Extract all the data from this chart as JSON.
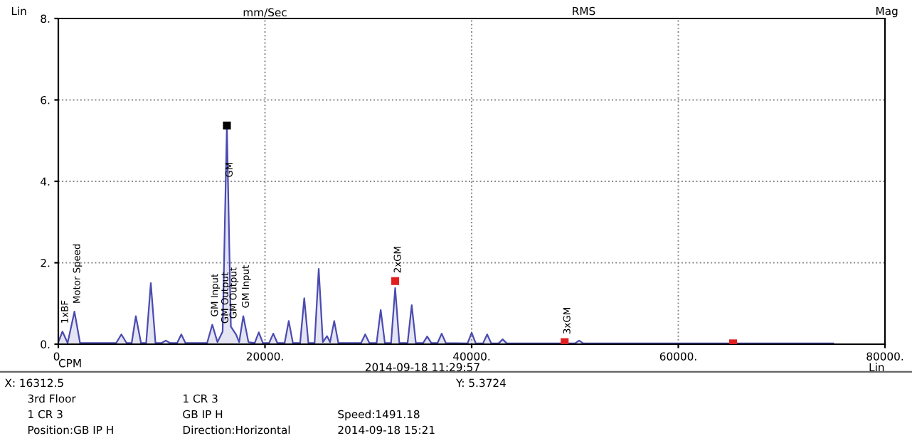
{
  "chart_data": {
    "type": "line",
    "ylabel": "mm/Sec",
    "xlabel": "CPM",
    "xlim": [
      0,
      80000
    ],
    "ylim": [
      0,
      8
    ],
    "xticks": [
      {
        "value": 0,
        "label": "0."
      },
      {
        "value": 20000,
        "label": "20000."
      },
      {
        "value": 40000,
        "label": "40000."
      },
      {
        "value": 60000,
        "label": "60000."
      },
      {
        "value": 80000,
        "label": "80000."
      }
    ],
    "yticks": [
      {
        "value": 0,
        "label": "0."
      },
      {
        "value": 2,
        "label": "2."
      },
      {
        "value": 4,
        "label": "4."
      },
      {
        "value": 6,
        "label": "6."
      },
      {
        "value": 8,
        "label": "8."
      }
    ],
    "grid": true,
    "line_style": "solid",
    "marker": "none",
    "series": [
      {
        "color": "#4b4bb0",
        "x": [
          0,
          400,
          900,
          1560,
          2100,
          5600,
          6100,
          6600,
          7100,
          7500,
          8000,
          8500,
          8950,
          9400,
          10000,
          10400,
          10800,
          11500,
          11900,
          12300,
          14400,
          14900,
          15400,
          15900,
          16312.5,
          16700,
          17200,
          17500,
          17900,
          18400,
          19000,
          19400,
          19800,
          20400,
          20800,
          21200,
          21900,
          22300,
          22700,
          23400,
          23800,
          24200,
          24800,
          25200,
          25600,
          26000,
          26300,
          26700,
          27100,
          29300,
          29700,
          30100,
          30800,
          31200,
          31600,
          32200,
          32600,
          33000,
          33800,
          34200,
          34600,
          35300,
          35700,
          36100,
          36700,
          37100,
          37500,
          39600,
          40000,
          40400,
          41100,
          41500,
          41900,
          42600,
          43000,
          43400,
          50000,
          50400,
          50800,
          65300,
          75000
        ],
        "values": [
          0.05,
          0.31,
          0.03,
          0.8,
          0.03,
          0.03,
          0.24,
          0.03,
          0.03,
          0.69,
          0.03,
          0.03,
          1.5,
          0.03,
          0.03,
          0.09,
          0.03,
          0.03,
          0.24,
          0.03,
          0.03,
          0.48,
          0.05,
          0.31,
          5.37,
          0.43,
          0.24,
          0.05,
          0.69,
          0.05,
          0.03,
          0.29,
          0.03,
          0.03,
          0.26,
          0.03,
          0.03,
          0.57,
          0.03,
          0.03,
          1.13,
          0.03,
          0.03,
          1.85,
          0.05,
          0.2,
          0.05,
          0.57,
          0.03,
          0.03,
          0.24,
          0.03,
          0.03,
          0.84,
          0.03,
          0.03,
          1.38,
          0.03,
          0.03,
          0.96,
          0.03,
          0.03,
          0.19,
          0.03,
          0.03,
          0.26,
          0.03,
          0.02,
          0.28,
          0.02,
          0.02,
          0.24,
          0.02,
          0.02,
          0.12,
          0.02,
          0.02,
          0.09,
          0.02,
          0.02,
          0.02
        ]
      },
      {
        "type": "scatter",
        "marker": "square",
        "x": [
          16312.5,
          32600,
          49000,
          65300
        ],
        "values": [
          5.37,
          1.55,
          0.05,
          0.02
        ],
        "colors": [
          "#000000",
          "#e02020",
          "#e02020",
          "#e02020"
        ]
      }
    ],
    "annotations": [
      {
        "text": "1xBF",
        "x": 400,
        "y": 0.31
      },
      {
        "text": "Motor Speed",
        "x": 1560,
        "y": 0.8
      },
      {
        "text": "GM Input",
        "x": 14900,
        "y": 0.48
      },
      {
        "text": "GM Output",
        "x": 15900,
        "y": 0.31
      },
      {
        "text": "GM",
        "x": 16312.5,
        "y": 3.9
      },
      {
        "text": "GM Output",
        "x": 16700,
        "y": 0.43
      },
      {
        "text": "GM Input",
        "x": 17900,
        "y": 0.69
      },
      {
        "text": "2xGM",
        "x": 32600,
        "y": 1.55
      },
      {
        "text": "3xGM",
        "x": 49000,
        "y": 0.05
      },
      "Lin",
      "RMS",
      "Mag",
      "Lin",
      "2014-09-18 11:29:57",
      "X: 16312.5",
      "Y: 5.3724",
      "3rd Floor",
      "1 CR 3",
      "1 CR 3",
      "GB IP H",
      "Speed:1491.18",
      "Position:GB IP H",
      "Direction:Horizontal",
      "2014-09-18 15:21"
    ]
  }
}
